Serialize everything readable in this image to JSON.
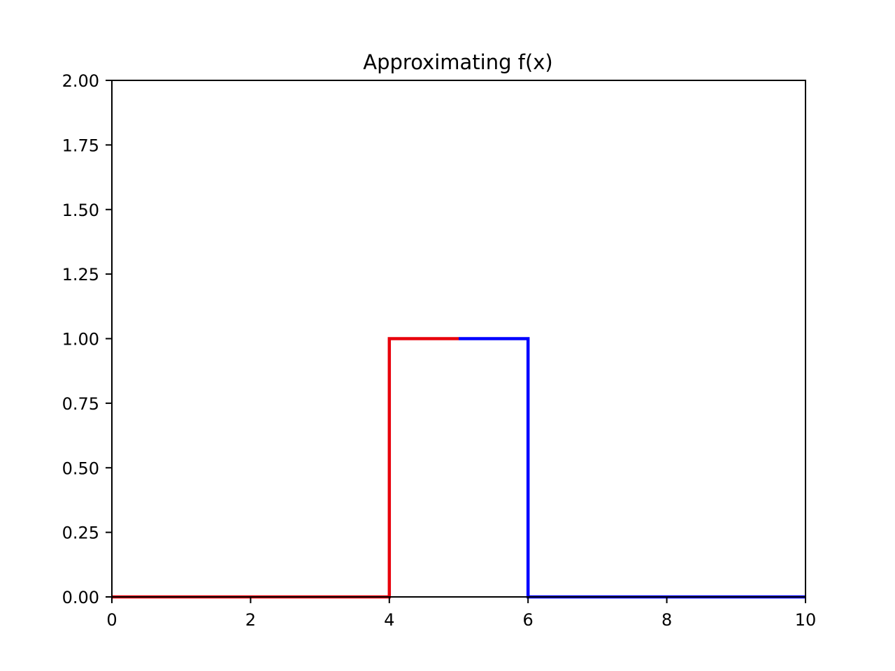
{
  "chart_data": {
    "type": "line",
    "title": "Approximating f(x)",
    "xlabel": "",
    "ylabel": "",
    "xlim": [
      0,
      10
    ],
    "ylim": [
      0,
      2
    ],
    "x_ticks": [
      0,
      2,
      4,
      6,
      8,
      10
    ],
    "x_tick_labels": [
      "0",
      "2",
      "4",
      "6",
      "8",
      "10"
    ],
    "y_ticks": [
      0,
      0.25,
      0.5,
      0.75,
      1.0,
      1.25,
      1.5,
      1.75,
      2.0
    ],
    "y_tick_labels": [
      "0.00",
      "0.25",
      "0.50",
      "0.75",
      "1.00",
      "1.25",
      "1.50",
      "1.75",
      "2.00"
    ],
    "grid": false,
    "legend": "none",
    "series": [
      {
        "color": "#e8000b",
        "points": [
          [
            0,
            0
          ],
          [
            4,
            0
          ],
          [
            4,
            1
          ],
          [
            5,
            1
          ]
        ]
      },
      {
        "color": "#0000ff",
        "points": [
          [
            5,
            1
          ],
          [
            6,
            1
          ],
          [
            6,
            0
          ],
          [
            10,
            0
          ]
        ]
      },
      {
        "color": "#00008b",
        "points": [
          [
            0,
            0
          ],
          [
            3,
            0
          ]
        ]
      },
      {
        "color": "#00008b",
        "points": [
          [
            6,
            0
          ],
          [
            10,
            0
          ]
        ]
      }
    ]
  }
}
